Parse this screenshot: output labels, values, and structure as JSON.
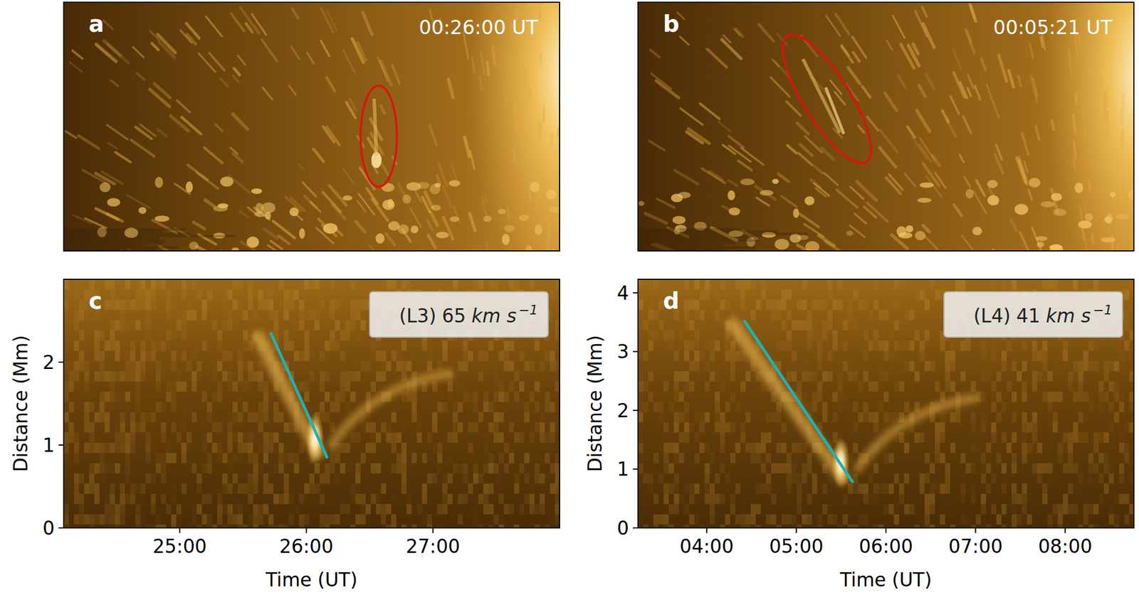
{
  "chart_data": [
    {
      "type": "image",
      "panel_label": "a",
      "timestamp": "00:26:00 UT"
    },
    {
      "type": "image",
      "panel_label": "b",
      "timestamp": "00:05:21 UT"
    },
    {
      "type": "time-distance",
      "panel_label": "c",
      "xlabel": "Time (UT)",
      "ylabel": "Distance (Mm)",
      "xlim": [
        1445,
        1680
      ],
      "xticks": [
        {
          "value": 1500,
          "label": "25:00"
        },
        {
          "value": 1560,
          "label": "26:00"
        },
        {
          "value": 1620,
          "label": "27:00"
        }
      ],
      "ylim": [
        0,
        3.0
      ],
      "yticks": [
        0,
        1,
        2
      ],
      "series": [
        {
          "name": "(L3)",
          "color": "#1fb2b2",
          "x": [
            1543,
            1570
          ],
          "values": [
            2.36,
            0.84
          ],
          "speed": 65,
          "speed_unit": "km s",
          "speed_unit_power": "−1"
        }
      ]
    },
    {
      "type": "time-distance",
      "panel_label": "d",
      "xlabel": "Time (UT)",
      "ylabel": "Distance (Mm)",
      "xlim": [
        194,
        526
      ],
      "xticks": [
        {
          "value": 240,
          "label": "04:00"
        },
        {
          "value": 300,
          "label": "05:00"
        },
        {
          "value": 360,
          "label": "06:00"
        },
        {
          "value": 420,
          "label": "07:00"
        },
        {
          "value": 480,
          "label": "08:00"
        }
      ],
      "ylim": [
        0,
        4.23
      ],
      "yticks": [
        0,
        1,
        2,
        3,
        4
      ],
      "series": [
        {
          "name": "(L4)",
          "color": "#1fb2b2",
          "x": [
            265,
            338
          ],
          "values": [
            3.53,
            0.77
          ],
          "speed": 41,
          "speed_unit": "km s",
          "speed_unit_power": "−1"
        }
      ]
    }
  ]
}
